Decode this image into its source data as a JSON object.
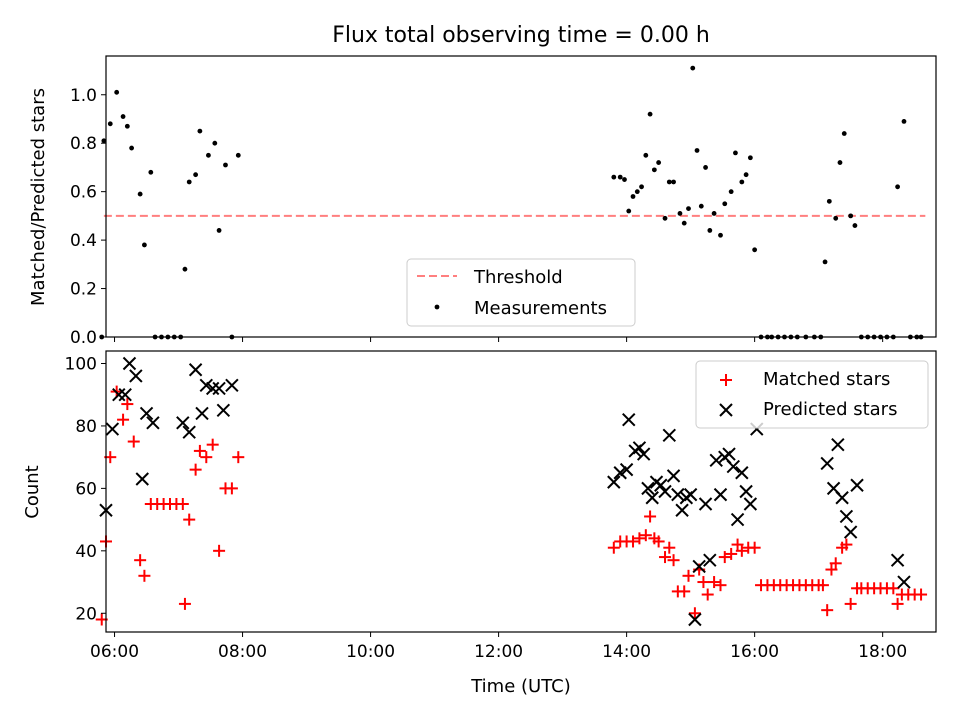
{
  "title": "Flux total observing time = 0.00 h",
  "chart_data": [
    {
      "type": "scatter",
      "panel": "top",
      "ylabel": "Matched/Predicted stars",
      "xlabel": "",
      "xlim": [
        "05:52",
        "18:50"
      ],
      "ylim": [
        0,
        1.16
      ],
      "yticks": [
        0.0,
        0.2,
        0.4,
        0.6,
        0.8,
        1.0
      ],
      "ytick_labels": [
        "0.0",
        "0.2",
        "0.4",
        "0.6",
        "0.8",
        "1.0"
      ],
      "grid": false,
      "legend_position": "lower center",
      "threshold": {
        "name": "Threshold",
        "value": 0.5,
        "x_range": [
          "05:50",
          "18:40"
        ],
        "color": "#ff7f7f",
        "style": "dashed"
      },
      "series": [
        {
          "name": "Measurements",
          "color": "#000000",
          "marker": "dot",
          "points": [
            [
              "05:48",
              0.0
            ],
            [
              "05:50",
              0.81
            ],
            [
              "05:56",
              0.88
            ],
            [
              "06:02",
              1.01
            ],
            [
              "06:08",
              0.91
            ],
            [
              "06:12",
              0.87
            ],
            [
              "06:16",
              0.78
            ],
            [
              "06:24",
              0.59
            ],
            [
              "06:28",
              0.38
            ],
            [
              "06:34",
              0.68
            ],
            [
              "06:38",
              0.0
            ],
            [
              "06:44",
              0.0
            ],
            [
              "06:50",
              0.0
            ],
            [
              "06:56",
              0.0
            ],
            [
              "07:02",
              0.0
            ],
            [
              "07:06",
              0.28
            ],
            [
              "07:10",
              0.64
            ],
            [
              "07:16",
              0.67
            ],
            [
              "07:20",
              0.85
            ],
            [
              "07:28",
              0.75
            ],
            [
              "07:34",
              0.8
            ],
            [
              "07:38",
              0.44
            ],
            [
              "07:44",
              0.71
            ],
            [
              "07:50",
              0.0
            ],
            [
              "07:56",
              0.75
            ],
            [
              "13:48",
              0.66
            ],
            [
              "13:54",
              0.66
            ],
            [
              "13:58",
              0.65
            ],
            [
              "14:02",
              0.52
            ],
            [
              "14:06",
              0.58
            ],
            [
              "14:10",
              0.6
            ],
            [
              "14:14",
              0.62
            ],
            [
              "14:18",
              0.75
            ],
            [
              "14:22",
              0.92
            ],
            [
              "14:26",
              0.69
            ],
            [
              "14:30",
              0.72
            ],
            [
              "14:36",
              0.49
            ],
            [
              "14:40",
              0.64
            ],
            [
              "14:44",
              0.64
            ],
            [
              "14:50",
              0.51
            ],
            [
              "14:54",
              0.47
            ],
            [
              "14:58",
              0.53
            ],
            [
              "15:02",
              1.11
            ],
            [
              "15:06",
              0.77
            ],
            [
              "15:10",
              0.54
            ],
            [
              "15:14",
              0.7
            ],
            [
              "15:18",
              0.44
            ],
            [
              "15:22",
              0.51
            ],
            [
              "15:28",
              0.42
            ],
            [
              "15:32",
              0.55
            ],
            [
              "15:38",
              0.6
            ],
            [
              "15:42",
              0.76
            ],
            [
              "15:48",
              0.64
            ],
            [
              "15:52",
              0.67
            ],
            [
              "15:56",
              0.74
            ],
            [
              "16:00",
              0.36
            ],
            [
              "16:06",
              0.0
            ],
            [
              "16:12",
              0.0
            ],
            [
              "16:16",
              0.0
            ],
            [
              "16:22",
              0.0
            ],
            [
              "16:28",
              0.0
            ],
            [
              "16:34",
              0.0
            ],
            [
              "16:40",
              0.0
            ],
            [
              "16:48",
              0.0
            ],
            [
              "16:56",
              0.0
            ],
            [
              "17:02",
              0.0
            ],
            [
              "17:06",
              0.31
            ],
            [
              "17:10",
              0.56
            ],
            [
              "17:16",
              0.49
            ],
            [
              "17:20",
              0.72
            ],
            [
              "17:24",
              0.84
            ],
            [
              "17:30",
              0.5
            ],
            [
              "17:34",
              0.46
            ],
            [
              "17:40",
              0.0
            ],
            [
              "17:46",
              0.0
            ],
            [
              "17:52",
              0.0
            ],
            [
              "17:58",
              0.0
            ],
            [
              "18:04",
              0.0
            ],
            [
              "18:10",
              0.0
            ],
            [
              "18:14",
              0.62
            ],
            [
              "18:20",
              0.89
            ],
            [
              "18:26",
              0.0
            ],
            [
              "18:32",
              0.0
            ],
            [
              "18:36",
              0.0
            ]
          ]
        }
      ]
    },
    {
      "type": "scatter",
      "panel": "bottom",
      "xlabel": "Time (UTC)",
      "ylabel": "Count",
      "xlim": [
        "05:52",
        "18:50"
      ],
      "ylim": [
        14,
        104
      ],
      "xticks": [
        "06:00",
        "08:00",
        "10:00",
        "12:00",
        "14:00",
        "16:00",
        "18:00"
      ],
      "yticks": [
        20,
        40,
        60,
        80,
        100
      ],
      "ytick_labels": [
        "20",
        "40",
        "60",
        "80",
        "100"
      ],
      "grid": false,
      "legend_position": "upper right",
      "series": [
        {
          "name": "Matched stars",
          "color": "#ff0000",
          "marker": "plus",
          "points": [
            [
              "05:48",
              18
            ],
            [
              "05:52",
              43
            ],
            [
              "05:56",
              70
            ],
            [
              "06:02",
              91
            ],
            [
              "06:08",
              82
            ],
            [
              "06:12",
              87
            ],
            [
              "06:18",
              75
            ],
            [
              "06:24",
              37
            ],
            [
              "06:28",
              32
            ],
            [
              "06:34",
              55
            ],
            [
              "06:40",
              55
            ],
            [
              "06:46",
              55
            ],
            [
              "06:52",
              55
            ],
            [
              "06:58",
              55
            ],
            [
              "07:04",
              55
            ],
            [
              "07:06",
              23
            ],
            [
              "07:10",
              50
            ],
            [
              "07:16",
              66
            ],
            [
              "07:20",
              72
            ],
            [
              "07:26",
              70
            ],
            [
              "07:32",
              74
            ],
            [
              "07:38",
              40
            ],
            [
              "07:44",
              60
            ],
            [
              "07:50",
              60
            ],
            [
              "07:56",
              70
            ],
            [
              "13:48",
              41
            ],
            [
              "13:54",
              43
            ],
            [
              "14:00",
              43
            ],
            [
              "14:06",
              43
            ],
            [
              "14:12",
              44
            ],
            [
              "14:18",
              45
            ],
            [
              "14:22",
              51
            ],
            [
              "14:26",
              44
            ],
            [
              "14:30",
              43
            ],
            [
              "14:36",
              38
            ],
            [
              "14:40",
              41
            ],
            [
              "14:44",
              37
            ],
            [
              "14:48",
              27
            ],
            [
              "14:54",
              27
            ],
            [
              "14:58",
              32
            ],
            [
              "15:04",
              20
            ],
            [
              "15:08",
              34
            ],
            [
              "15:12",
              30
            ],
            [
              "15:16",
              26
            ],
            [
              "15:22",
              30
            ],
            [
              "15:28",
              29
            ],
            [
              "15:32",
              38
            ],
            [
              "15:38",
              39
            ],
            [
              "15:44",
              42
            ],
            [
              "15:48",
              40
            ],
            [
              "15:54",
              41
            ],
            [
              "16:00",
              41
            ],
            [
              "16:06",
              29
            ],
            [
              "16:12",
              29
            ],
            [
              "16:18",
              29
            ],
            [
              "16:24",
              29
            ],
            [
              "16:30",
              29
            ],
            [
              "16:36",
              29
            ],
            [
              "16:42",
              29
            ],
            [
              "16:48",
              29
            ],
            [
              "16:54",
              29
            ],
            [
              "17:00",
              29
            ],
            [
              "17:04",
              29
            ],
            [
              "17:08",
              21
            ],
            [
              "17:12",
              34
            ],
            [
              "17:16",
              36
            ],
            [
              "17:22",
              41
            ],
            [
              "17:26",
              42
            ],
            [
              "17:30",
              23
            ],
            [
              "17:36",
              28
            ],
            [
              "17:40",
              28
            ],
            [
              "17:46",
              28
            ],
            [
              "17:52",
              28
            ],
            [
              "17:58",
              28
            ],
            [
              "18:04",
              28
            ],
            [
              "18:10",
              28
            ],
            [
              "18:14",
              23
            ],
            [
              "18:18",
              26
            ],
            [
              "18:24",
              26
            ],
            [
              "18:30",
              26
            ],
            [
              "18:36",
              26
            ]
          ]
        },
        {
          "name": "Predicted stars",
          "color": "#000000",
          "marker": "x",
          "points": [
            [
              "05:52",
              53
            ],
            [
              "05:58",
              79
            ],
            [
              "06:04",
              90
            ],
            [
              "06:10",
              90
            ],
            [
              "06:14",
              100
            ],
            [
              "06:20",
              96
            ],
            [
              "06:26",
              63
            ],
            [
              "06:30",
              84
            ],
            [
              "06:36",
              81
            ],
            [
              "07:04",
              81
            ],
            [
              "07:10",
              78
            ],
            [
              "07:16",
              98
            ],
            [
              "07:22",
              84
            ],
            [
              "07:26",
              93
            ],
            [
              "07:32",
              92
            ],
            [
              "07:38",
              92
            ],
            [
              "07:42",
              85
            ],
            [
              "07:50",
              93
            ],
            [
              "13:48",
              62
            ],
            [
              "13:54",
              65
            ],
            [
              "14:00",
              66
            ],
            [
              "14:02",
              82
            ],
            [
              "14:08",
              72
            ],
            [
              "14:12",
              73
            ],
            [
              "14:16",
              71
            ],
            [
              "14:20",
              60
            ],
            [
              "14:24",
              57
            ],
            [
              "14:28",
              62
            ],
            [
              "14:32",
              61
            ],
            [
              "14:36",
              59
            ],
            [
              "14:40",
              77
            ],
            [
              "14:44",
              64
            ],
            [
              "14:48",
              58
            ],
            [
              "14:52",
              53
            ],
            [
              "14:56",
              57
            ],
            [
              "15:00",
              58
            ],
            [
              "15:04",
              18
            ],
            [
              "15:08",
              35
            ],
            [
              "15:14",
              55
            ],
            [
              "15:18",
              37
            ],
            [
              "15:24",
              69
            ],
            [
              "15:28",
              58
            ],
            [
              "15:32",
              70
            ],
            [
              "15:36",
              71
            ],
            [
              "15:40",
              67
            ],
            [
              "15:44",
              50
            ],
            [
              "15:48",
              65
            ],
            [
              "15:52",
              59
            ],
            [
              "15:56",
              55
            ],
            [
              "16:02",
              79
            ],
            [
              "17:08",
              68
            ],
            [
              "17:14",
              60
            ],
            [
              "17:18",
              74
            ],
            [
              "17:22",
              57
            ],
            [
              "17:26",
              51
            ],
            [
              "17:30",
              46
            ],
            [
              "17:36",
              61
            ],
            [
              "18:14",
              37
            ],
            [
              "18:20",
              30
            ]
          ]
        }
      ]
    }
  ]
}
